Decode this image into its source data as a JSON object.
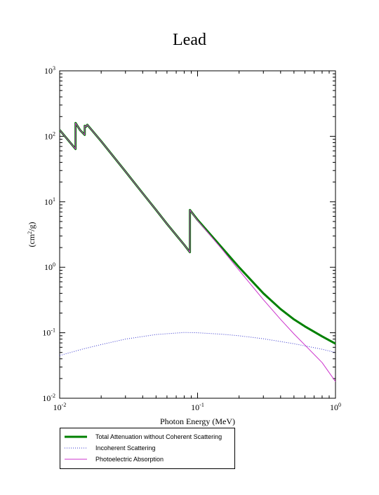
{
  "chart_data": {
    "type": "line",
    "title": "Lead",
    "xlabel": "Photon Energy (MeV)",
    "ylabel": "(cm²/g)",
    "xscale": "log",
    "yscale": "log",
    "xlim": [
      0.01,
      1
    ],
    "ylim": [
      0.01,
      1000
    ],
    "x_ticks": [
      "10-2",
      "10-1",
      "100"
    ],
    "y_ticks": [
      "10-2",
      "10-1",
      "100",
      "101",
      "102",
      "103"
    ],
    "legend_position": "bottom-left, below plot",
    "series": [
      {
        "name": "Total Attenuation without Coherent Scattering",
        "color": "#008000",
        "style": "solid-thick",
        "x": [
          0.01,
          0.01304,
          0.01304,
          0.01404,
          0.0152,
          0.0152,
          0.01553,
          0.01586,
          0.01586,
          0.02,
          0.03,
          0.04,
          0.05,
          0.06,
          0.08,
          0.088,
          0.088,
          0.1,
          0.15,
          0.2,
          0.3,
          0.4,
          0.5,
          0.6,
          0.8,
          1.0
        ],
        "y": [
          125,
          64,
          160,
          125,
          105,
          145,
          140,
          150,
          150,
          84,
          29,
          13.5,
          7.5,
          4.6,
          2.2,
          1.7,
          7.5,
          5.3,
          2.0,
          1.0,
          0.4,
          0.23,
          0.16,
          0.125,
          0.088,
          0.068
        ]
      },
      {
        "name": "Incoherent Scattering",
        "color": "#3333cc",
        "style": "dotted",
        "x": [
          0.01,
          0.015,
          0.02,
          0.03,
          0.05,
          0.08,
          0.1,
          0.15,
          0.2,
          0.3,
          0.5,
          0.8,
          1.0
        ],
        "y": [
          0.045,
          0.057,
          0.066,
          0.08,
          0.094,
          0.101,
          0.1,
          0.095,
          0.09,
          0.081,
          0.068,
          0.056,
          0.05
        ]
      },
      {
        "name": "Photoelectric Absorption",
        "color": "#cc33cc",
        "style": "solid-thin",
        "x": [
          0.01,
          0.01304,
          0.01304,
          0.01404,
          0.0152,
          0.0152,
          0.01553,
          0.01586,
          0.01586,
          0.02,
          0.03,
          0.04,
          0.05,
          0.06,
          0.08,
          0.088,
          0.088,
          0.1,
          0.15,
          0.2,
          0.3,
          0.4,
          0.5,
          0.6,
          0.8,
          1.0
        ],
        "y": [
          125,
          64,
          160,
          125,
          105,
          145,
          140,
          150,
          150,
          84,
          29,
          13.5,
          7.5,
          4.6,
          2.2,
          1.7,
          7.5,
          5.2,
          1.9,
          0.9,
          0.32,
          0.16,
          0.096,
          0.065,
          0.035,
          0.018
        ]
      }
    ]
  }
}
